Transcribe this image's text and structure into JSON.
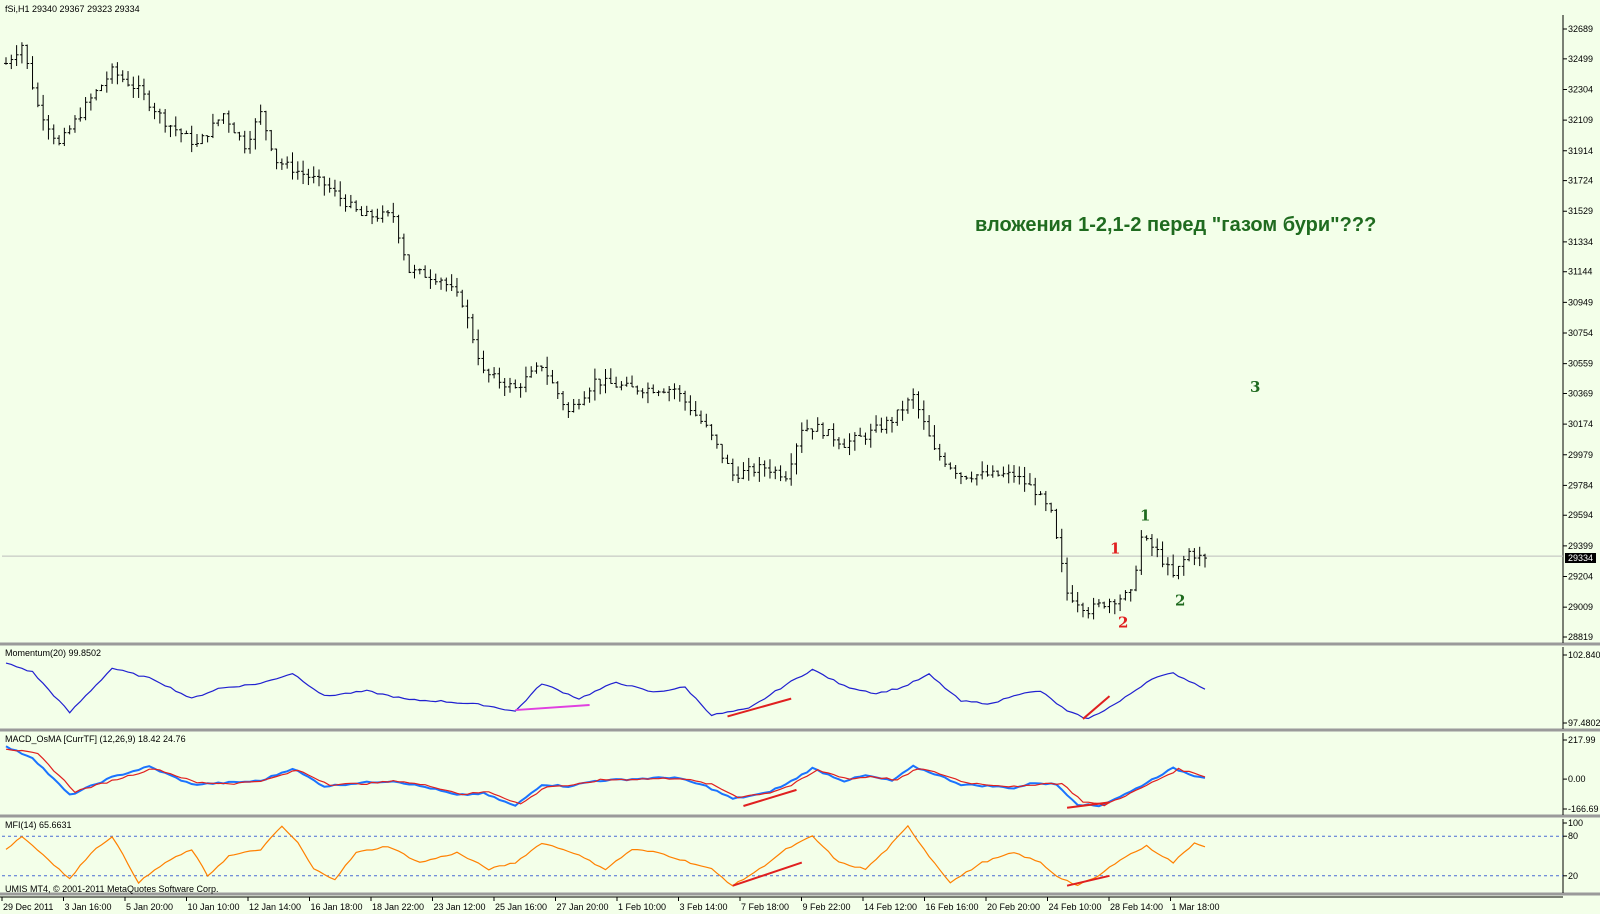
{
  "main_header": "fSi,H1  29340 29367 29323 29334",
  "annotation": "вложения 1-2,1-2 перед \"газом бури\"???",
  "current_price_label": "29334",
  "wave_labels": [
    {
      "text": "1",
      "color": "#1f6b1f",
      "at": "29560"
    },
    {
      "text": "1",
      "color": "#e02020",
      "at": "29350"
    },
    {
      "text": "2",
      "color": "#e02020",
      "at": "28880"
    },
    {
      "text": "2",
      "color": "#1f6b1f",
      "at": "29020"
    },
    {
      "text": "3",
      "color": "#1f6b1f",
      "at": "30380"
    }
  ],
  "footer_text": "UMIS MT4, © 2001-2011 MetaQuotes Software Corp.",
  "chart_data": [
    {
      "type": "ohlc",
      "name": "fSi,H1",
      "ylim": [
        28819,
        32689
      ],
      "yticks": [
        "32689",
        "32499",
        "32304",
        "32109",
        "31914",
        "31724",
        "31529",
        "31334",
        "31144",
        "30949",
        "30754",
        "30559",
        "30369",
        "30174",
        "29979",
        "29784",
        "29594",
        "29399",
        "29204",
        "29009",
        "28819"
      ],
      "current": 29334,
      "anchors": [
        [
          0,
          32470
        ],
        [
          3,
          32590
        ],
        [
          6,
          32200
        ],
        [
          10,
          31950
        ],
        [
          15,
          32200
        ],
        [
          20,
          32420
        ],
        [
          25,
          32300
        ],
        [
          30,
          32100
        ],
        [
          36,
          31950
        ],
        [
          41,
          32150
        ],
        [
          45,
          31950
        ],
        [
          48,
          32150
        ],
        [
          51,
          31850
        ],
        [
          54,
          31800
        ],
        [
          60,
          31700
        ],
        [
          67,
          31500
        ],
        [
          73,
          31500
        ],
        [
          76,
          31150
        ],
        [
          82,
          31100
        ],
        [
          86,
          30950
        ],
        [
          90,
          30500
        ],
        [
          96,
          30400
        ],
        [
          101,
          30550
        ],
        [
          106,
          30250
        ],
        [
          111,
          30450
        ],
        [
          118,
          30400
        ],
        [
          126,
          30400
        ],
        [
          132,
          30150
        ],
        [
          137,
          29850
        ],
        [
          143,
          29900
        ],
        [
          147,
          29850
        ],
        [
          150,
          30150
        ],
        [
          153,
          30150
        ],
        [
          158,
          30050
        ],
        [
          162,
          30100
        ],
        [
          167,
          30200
        ],
        [
          171,
          30350
        ],
        [
          175,
          30000
        ],
        [
          180,
          29850
        ],
        [
          185,
          29850
        ],
        [
          190,
          29850
        ],
        [
          194,
          29750
        ],
        [
          197,
          29600
        ],
        [
          200,
          29100
        ],
        [
          204,
          28990
        ],
        [
          208,
          29050
        ],
        [
          212,
          29090
        ],
        [
          214,
          29450
        ],
        [
          217,
          29360
        ],
        [
          220,
          29200
        ],
        [
          223,
          29360
        ],
        [
          226,
          29310
        ]
      ],
      "xticks": [
        "29 Dec 2011",
        "3 Jan 16:00",
        "5 Jan 20:00",
        "10 Jan 10:00",
        "12 Jan 14:00",
        "16 Jan 18:00",
        "18 Jan 22:00",
        "23 Jan 12:00",
        "25 Jan 16:00",
        "27 Jan 20:00",
        "1 Feb 10:00",
        "3 Feb 14:00",
        "7 Feb 18:00",
        "9 Feb 22:00",
        "14 Feb 12:00",
        "16 Feb 16:00",
        "20 Feb 20:00",
        "24 Feb 10:00",
        "28 Feb 14:00",
        "1 Mar 18:00"
      ]
    },
    {
      "type": "line",
      "name": "Momentum(20) 99.8502",
      "ylim": [
        97.4802,
        102.8402
      ],
      "yticks": [
        "102.8402",
        "97.4802"
      ],
      "series": [
        {
          "color": "#2020d0",
          "anchors": [
            [
              0,
              102.2
            ],
            [
              5,
              101.5
            ],
            [
              12,
              98.3
            ],
            [
              20,
              101.8
            ],
            [
              28,
              100.9
            ],
            [
              35,
              99.4
            ],
            [
              40,
              100.2
            ],
            [
              48,
              100.6
            ],
            [
              54,
              101.4
            ],
            [
              60,
              99.6
            ],
            [
              68,
              100.0
            ],
            [
              76,
              99.3
            ],
            [
              82,
              99.2
            ],
            [
              90,
              98.9
            ],
            [
              96,
              98.4
            ],
            [
              101,
              100.6
            ],
            [
              108,
              99.4
            ],
            [
              115,
              100.7
            ],
            [
              122,
              99.9
            ],
            [
              128,
              100.3
            ],
            [
              133,
              98.1
            ],
            [
              140,
              98.6
            ],
            [
              147,
              100.5
            ],
            [
              152,
              101.7
            ],
            [
              158,
              100.4
            ],
            [
              164,
              99.8
            ],
            [
              169,
              100.3
            ],
            [
              174,
              101.3
            ],
            [
              180,
              99.2
            ],
            [
              186,
              99.0
            ],
            [
              190,
              99.7
            ],
            [
              195,
              100.0
            ],
            [
              200,
              98.4
            ],
            [
              204,
              97.8
            ],
            [
              210,
              99.2
            ],
            [
              216,
              101.0
            ],
            [
              220,
              101.4
            ],
            [
              224,
              100.6
            ],
            [
              226,
              100.2
            ]
          ]
        }
      ],
      "divergence_lines": [
        {
          "color": "#e040e0",
          "x": [
            96,
            110
          ],
          "y": [
            98.5,
            98.9
          ]
        },
        {
          "color": "#e02020",
          "x": [
            136,
            148
          ],
          "y": [
            98.0,
            99.4
          ]
        },
        {
          "color": "#e02020",
          "x": [
            203,
            208
          ],
          "y": [
            97.8,
            99.6
          ]
        }
      ]
    },
    {
      "type": "line",
      "name": "MACD_OsMA [CurrTF] (12,26,9) 18.42 24.76",
      "ylim": [
        -166.69,
        217.99
      ],
      "yticks": [
        "217.99",
        "0.00",
        "-166.69"
      ],
      "series": [
        {
          "color": "#1a73ff",
          "anchors": [
            [
              0,
              180
            ],
            [
              5,
              120
            ],
            [
              12,
              -90
            ],
            [
              20,
              10
            ],
            [
              27,
              70
            ],
            [
              35,
              -30
            ],
            [
              42,
              -20
            ],
            [
              48,
              -10
            ],
            [
              54,
              60
            ],
            [
              60,
              -40
            ],
            [
              67,
              -20
            ],
            [
              73,
              -10
            ],
            [
              80,
              -50
            ],
            [
              85,
              -90
            ],
            [
              90,
              -80
            ],
            [
              96,
              -150
            ],
            [
              101,
              -30
            ],
            [
              106,
              -40
            ],
            [
              111,
              -10
            ],
            [
              118,
              0
            ],
            [
              126,
              10
            ],
            [
              132,
              -40
            ],
            [
              137,
              -110
            ],
            [
              143,
              -80
            ],
            [
              147,
              -30
            ],
            [
              152,
              60
            ],
            [
              158,
              -10
            ],
            [
              162,
              20
            ],
            [
              167,
              -10
            ],
            [
              171,
              70
            ],
            [
              175,
              30
            ],
            [
              180,
              -30
            ],
            [
              186,
              -40
            ],
            [
              190,
              -50
            ],
            [
              194,
              -20
            ],
            [
              198,
              -30
            ],
            [
              202,
              -140
            ],
            [
              206,
              -150
            ],
            [
              212,
              -70
            ],
            [
              218,
              30
            ],
            [
              220,
              60
            ],
            [
              224,
              20
            ],
            [
              226,
              10
            ]
          ]
        },
        {
          "color": "#e02020",
          "anchors": [
            [
              0,
              170
            ],
            [
              6,
              140
            ],
            [
              13,
              -70
            ],
            [
              21,
              0
            ],
            [
              28,
              60
            ],
            [
              36,
              -20
            ],
            [
              43,
              -25
            ],
            [
              49,
              -5
            ],
            [
              55,
              50
            ],
            [
              61,
              -30
            ],
            [
              68,
              -25
            ],
            [
              74,
              -10
            ],
            [
              81,
              -45
            ],
            [
              86,
              -85
            ],
            [
              91,
              -70
            ],
            [
              97,
              -140
            ],
            [
              102,
              -40
            ],
            [
              107,
              -35
            ],
            [
              112,
              -5
            ],
            [
              119,
              0
            ],
            [
              127,
              5
            ],
            [
              133,
              -30
            ],
            [
              138,
              -100
            ],
            [
              144,
              -75
            ],
            [
              148,
              -35
            ],
            [
              153,
              50
            ],
            [
              159,
              0
            ],
            [
              163,
              15
            ],
            [
              168,
              -5
            ],
            [
              172,
              60
            ],
            [
              176,
              30
            ],
            [
              181,
              -20
            ],
            [
              187,
              -35
            ],
            [
              191,
              -45
            ],
            [
              195,
              -25
            ],
            [
              199,
              -25
            ],
            [
              203,
              -125
            ],
            [
              207,
              -145
            ],
            [
              213,
              -65
            ],
            [
              219,
              25
            ],
            [
              221,
              55
            ],
            [
              225,
              25
            ],
            [
              226,
              15
            ]
          ]
        }
      ],
      "divergence_lines": [
        {
          "color": "#e02020",
          "x": [
            139,
            149
          ],
          "y": [
            -150,
            -60
          ]
        },
        {
          "color": "#e02020",
          "x": [
            200,
            208
          ],
          "y": [
            -160,
            -130
          ]
        }
      ]
    },
    {
      "type": "line",
      "name": "MFI(14) 65.6631",
      "ylim": [
        0,
        100
      ],
      "yticks": [
        "100",
        "80",
        "20"
      ],
      "levels": [
        80,
        20
      ],
      "series": [
        {
          "color": "#ff8000",
          "anchors": [
            [
              0,
              60
            ],
            [
              3,
              80
            ],
            [
              8,
              45
            ],
            [
              12,
              15
            ],
            [
              16,
              55
            ],
            [
              20,
              80
            ],
            [
              25,
              10
            ],
            [
              30,
              40
            ],
            [
              35,
              60
            ],
            [
              38,
              20
            ],
            [
              42,
              50
            ],
            [
              48,
              60
            ],
            [
              52,
              95
            ],
            [
              55,
              70
            ],
            [
              58,
              30
            ],
            [
              62,
              15
            ],
            [
              66,
              55
            ],
            [
              72,
              65
            ],
            [
              78,
              40
            ],
            [
              85,
              55
            ],
            [
              91,
              30
            ],
            [
              96,
              40
            ],
            [
              101,
              70
            ],
            [
              107,
              55
            ],
            [
              113,
              30
            ],
            [
              118,
              60
            ],
            [
              123,
              55
            ],
            [
              129,
              40
            ],
            [
              133,
              30
            ],
            [
              137,
              5
            ],
            [
              142,
              30
            ],
            [
              147,
              60
            ],
            [
              152,
              80
            ],
            [
              157,
              40
            ],
            [
              162,
              30
            ],
            [
              166,
              60
            ],
            [
              170,
              95
            ],
            [
              174,
              50
            ],
            [
              178,
              10
            ],
            [
              184,
              40
            ],
            [
              190,
              55
            ],
            [
              195,
              40
            ],
            [
              198,
              20
            ],
            [
              202,
              5
            ],
            [
              206,
              20
            ],
            [
              210,
              45
            ],
            [
              215,
              65
            ],
            [
              220,
              40
            ],
            [
              224,
              70
            ],
            [
              226,
              65
            ]
          ]
        }
      ],
      "divergence_lines": [
        {
          "color": "#e02020",
          "x": [
            137,
            150
          ],
          "y": [
            5,
            40
          ]
        },
        {
          "color": "#e02020",
          "x": [
            200,
            208
          ],
          "y": [
            5,
            20
          ]
        }
      ]
    }
  ]
}
